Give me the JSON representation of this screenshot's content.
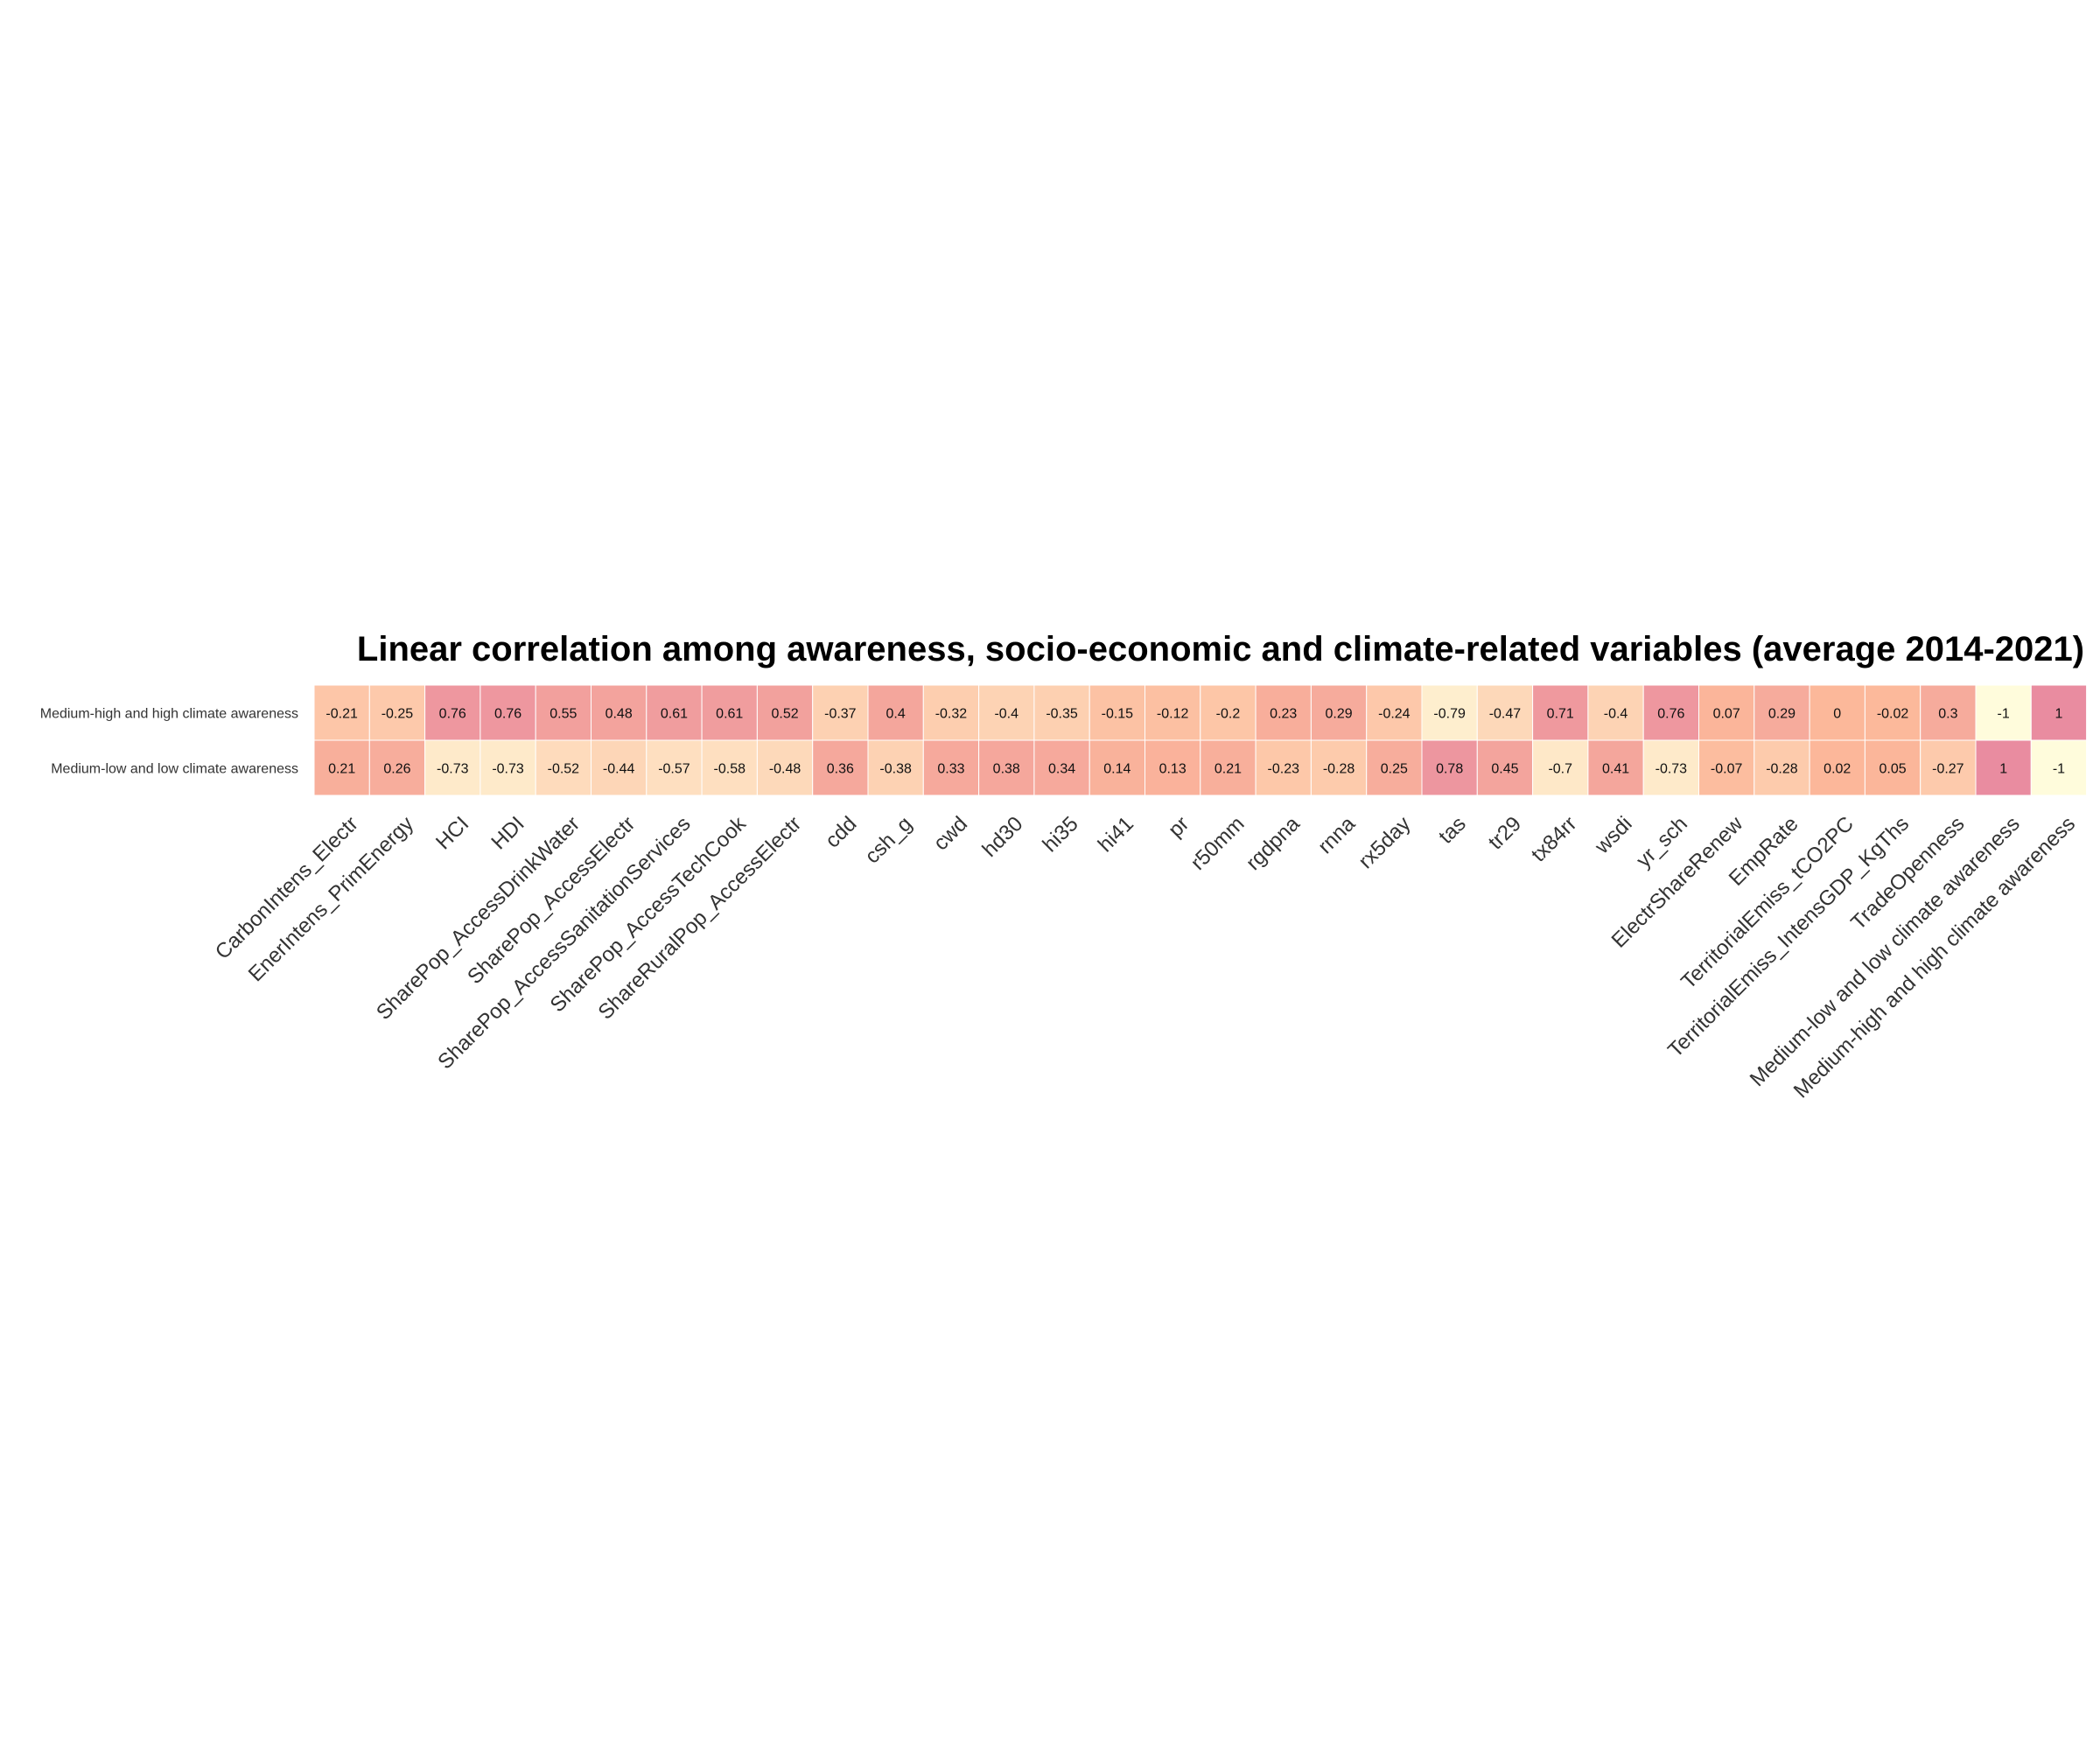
{
  "chart_data": {
    "type": "heatmap",
    "title": "Linear correlation among awareness, socio-economic and climate-related variables (average 2014-2021)",
    "rows": [
      "Medium-high and high climate awareness",
      "Medium-low and low climate awareness"
    ],
    "columns": [
      "CarbonIntens_Electr",
      "EnerIntens_PrimEnergy",
      "HCI",
      "HDI",
      "SharePop_AccessDrinkWater",
      "SharePop_AccessElectr",
      "SharePop_AccessSanitationServices",
      "SharePop_AccessTechCook",
      "ShareRuralPop_AccessElectr",
      "cdd",
      "csh_g",
      "cwd",
      "hd30",
      "hi35",
      "hi41",
      "pr",
      "r50mm",
      "rgdpna",
      "rnna",
      "rx5day",
      "tas",
      "tr29",
      "tx84rr",
      "wsdi",
      "yr_sch",
      "ElectrShareRenew",
      "EmpRate",
      "TerritorialEmiss_tCO2PC",
      "TerritorialEmiss_IntensGDP_KgThs",
      "TradeOpenness",
      "Medium-low and low climate awareness",
      "Medium-high and high climate awareness"
    ],
    "values": [
      [
        -0.21,
        -0.25,
        0.76,
        0.76,
        0.55,
        0.48,
        0.61,
        0.61,
        0.52,
        -0.37,
        0.4,
        -0.32,
        -0.4,
        -0.35,
        -0.15,
        -0.12,
        -0.2,
        0.23,
        0.29,
        -0.24,
        -0.79,
        -0.47,
        0.71,
        -0.4,
        0.76,
        0.07,
        0.29,
        0,
        -0.02,
        0.3,
        -1,
        1
      ],
      [
        0.21,
        0.26,
        -0.73,
        -0.73,
        -0.52,
        -0.44,
        -0.57,
        -0.58,
        -0.48,
        0.36,
        -0.38,
        0.33,
        0.38,
        0.34,
        0.14,
        0.13,
        0.21,
        -0.23,
        -0.28,
        0.25,
        0.78,
        0.45,
        -0.7,
        0.41,
        -0.73,
        -0.07,
        -0.28,
        0.02,
        0.05,
        -0.27,
        1,
        -1
      ]
    ],
    "value_range": [
      -1,
      1
    ],
    "color_low": "#fffcdc",
    "color_mid": "#fcb89a",
    "color_high": "#e98ca0",
    "cell_border_color": "#ffffff",
    "legend": "none"
  }
}
